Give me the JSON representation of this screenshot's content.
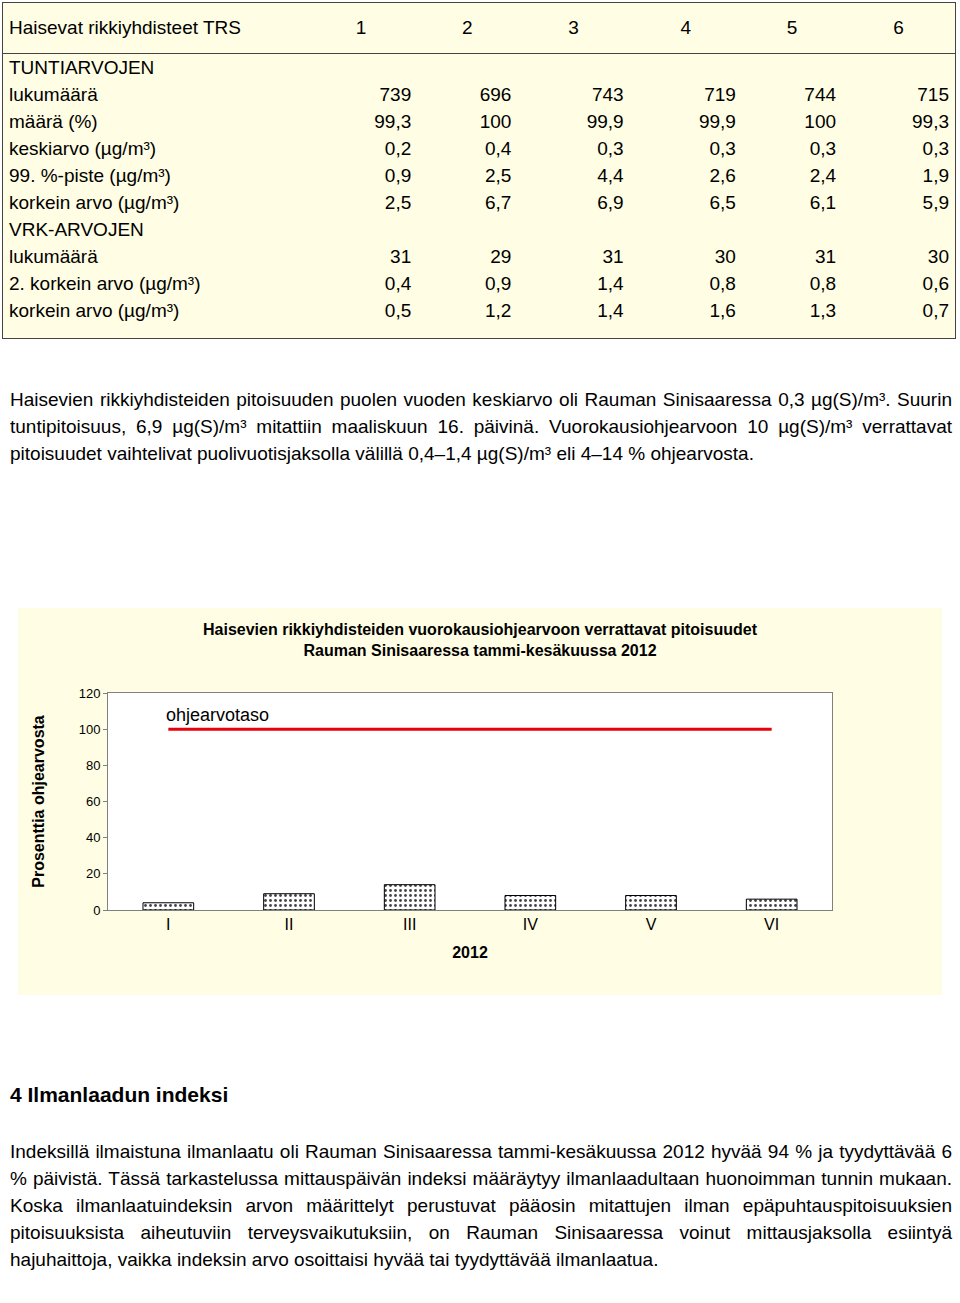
{
  "table": {
    "header": [
      "Haisevat rikkiyhdisteet TRS",
      "1",
      "2",
      "3",
      "4",
      "5",
      "6"
    ],
    "rows": [
      [
        "TUNTIARVOJEN"
      ],
      [
        "lukumäärä",
        "739",
        "696",
        "743",
        "719",
        "744",
        "715"
      ],
      [
        "määrä (%)",
        "99,3",
        "100",
        "99,9",
        "99,9",
        "100",
        "99,3"
      ],
      [
        "keskiarvo (µg/m³)",
        "0,2",
        "0,4",
        "0,3",
        "0,3",
        "0,3",
        "0,3"
      ],
      [
        "99. %-piste (µg/m³)",
        "0,9",
        "2,5",
        "4,4",
        "2,6",
        "2,4",
        "1,9"
      ],
      [
        "korkein arvo (µg/m³)",
        "2,5",
        "6,7",
        "6,9",
        "6,5",
        "6,1",
        "5,9"
      ],
      [
        "VRK-ARVOJEN"
      ],
      [
        "lukumäärä",
        "31",
        "29",
        "31",
        "30",
        "31",
        "30"
      ],
      [
        "2. korkein arvo (µg/m³)",
        "0,4",
        "0,9",
        "1,4",
        "0,8",
        "0,8",
        "0,6"
      ],
      [
        "korkein arvo (µg/m³)",
        "0,5",
        "1,2",
        "1,4",
        "1,6",
        "1,3",
        "0,7"
      ]
    ]
  },
  "paragraph": "Haisevien rikkiyhdisteiden pitoisuuden puolen vuoden keskiarvo oli Rauman Sinisaaressa 0,3 µg(S)/m³. Suurin tuntipitoisuus, 6,9 µg(S)/m³ mitattiin maaliskuun 16. päivinä. Vuorokausiohjearvoon 10 µg(S)/m³ verrattavat pitoisuudet vaihtelivat puolivuotisjaksolla välillä 0,4–1,4 µg(S)/m³ eli 4–14 % ohjearvosta.",
  "chart_data": {
    "type": "bar",
    "title": "Haisevien rikkiyhdisteiden vuorokausiohjearvoon verrattavat pitoisuudet",
    "subtitle": "Rauman Sinisaaressa tammi-kesäkuussa 2012",
    "x_label": "2012",
    "y_label": "Prosenttia ohjearvosta",
    "categories": [
      "I",
      "II",
      "III",
      "IV",
      "V",
      "VI"
    ],
    "values": [
      4,
      9,
      14,
      8,
      8,
      6
    ],
    "color": "#d4d4d4",
    "marker": "dotted",
    "ylim": [
      0,
      120
    ],
    "yticks": [
      0,
      20,
      40,
      60,
      80,
      100,
      120
    ],
    "grid": false,
    "threshold": {
      "value": 100,
      "label": "ohjearvotaso",
      "color": "#e8000b"
    }
  },
  "section": {
    "heading": "4 Ilmanlaadun indeksi",
    "text": "Indeksillä ilmaistuna ilmanlaatu oli Rauman Sinisaaressa tammi-kesäkuussa 2012 hyvää 94 % ja tyydyttävää 6 % päivistä. Tässä tarkastelussa mittauspäivän indeksi määräytyy ilmanlaadultaan huonoimman tunnin mukaan. Koska ilmanlaatuindeksin arvon määrittelyt perustuvat pääosin mitattujen ilman epäpuhtauspitoisuuksien pitoisuuksista aiheutuviin terveysvaikutuksiin, on Rauman Sinisaaressa voinut mittausjaksolla esiintyä hajuhaittoja, vaikka indeksin arvo osoittaisi hyvää tai tyydyttävää ilmanlaatua."
  }
}
